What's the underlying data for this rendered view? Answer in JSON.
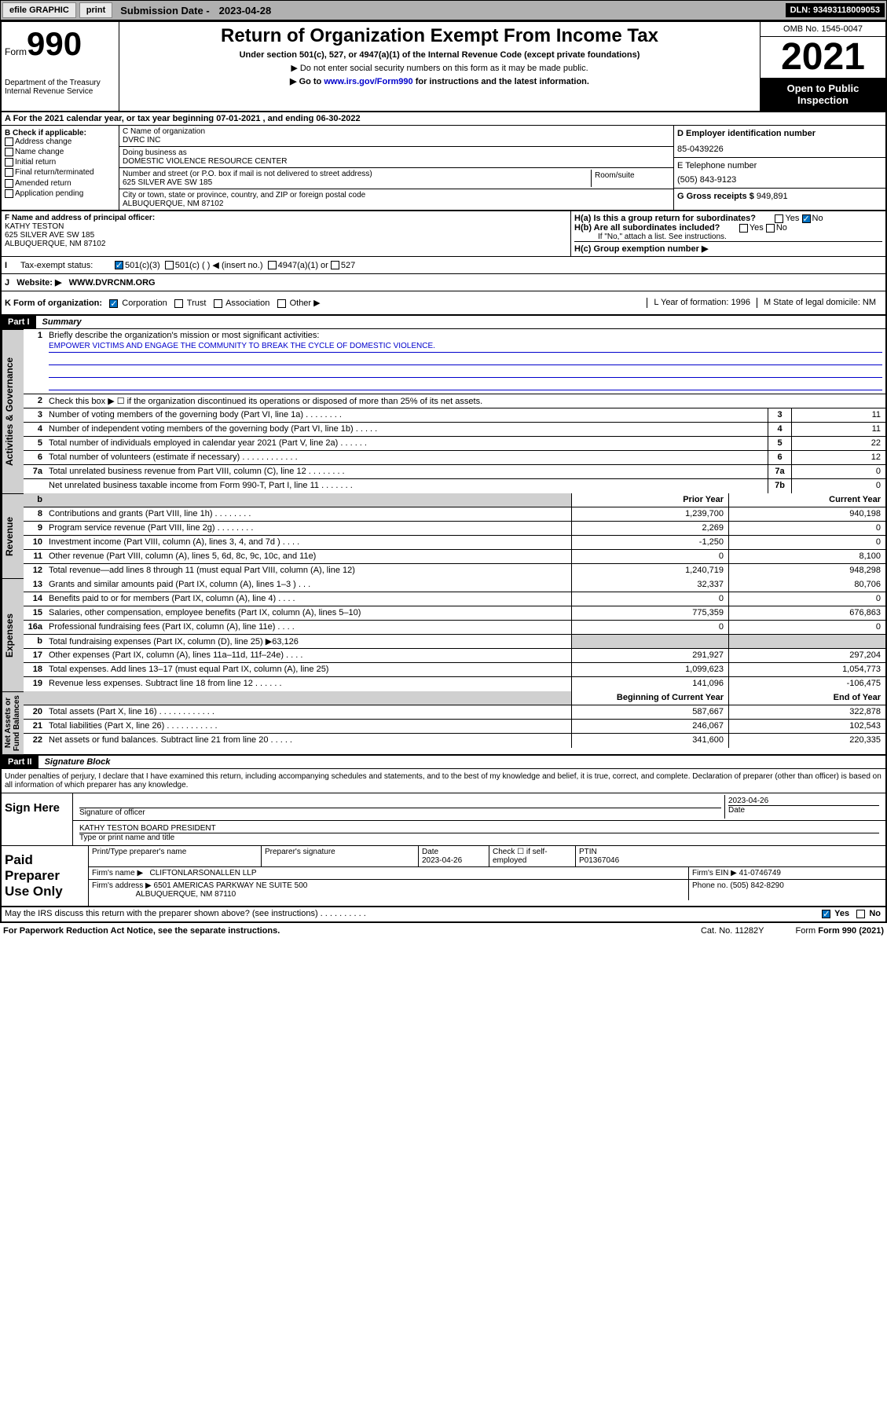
{
  "topbar": {
    "efile": "efile GRAPHIC",
    "print": "print",
    "subdate_lbl": "Submission Date - ",
    "subdate": "2023-04-28",
    "dln": "DLN: 93493118009053"
  },
  "hdr": {
    "form": "Form",
    "formno": "990",
    "title": "Return of Organization Exempt From Income Tax",
    "sub1": "Under section 501(c), 527, or 4947(a)(1) of the Internal Revenue Code (except private foundations)",
    "sub2": "▶ Do not enter social security numbers on this form as it may be made public.",
    "sub3_pre": "▶ Go to ",
    "sub3_link": "www.irs.gov/Form990",
    "sub3_post": " for instructions and the latest information.",
    "dept": "Department of the Treasury\nInternal Revenue Service",
    "omb": "OMB No. 1545-0047",
    "year": "2021",
    "open": "Open to Public Inspection"
  },
  "rowA": "A For the 2021 calendar year, or tax year beginning 07-01-2021   , and ending 06-30-2022",
  "B": {
    "lbl": "B Check if applicable:",
    "opts": [
      "Address change",
      "Name change",
      "Initial return",
      "Final return/terminated",
      "Amended return",
      "Application pending"
    ]
  },
  "C": {
    "name_lbl": "C Name of organization",
    "name": "DVRC INC",
    "dba_lbl": "Doing business as",
    "dba": "DOMESTIC VIOLENCE RESOURCE CENTER",
    "street_lbl": "Number and street (or P.O. box if mail is not delivered to street address)",
    "street": "625 SILVER AVE SW 185",
    "room_lbl": "Room/suite",
    "city_lbl": "City or town, state or province, country, and ZIP or foreign postal code",
    "city": "ALBUQUERQUE, NM  87102"
  },
  "D": {
    "lbl": "D Employer identification number",
    "val": "85-0439226"
  },
  "E": {
    "lbl": "E Telephone number",
    "val": "(505) 843-9123"
  },
  "G": {
    "lbl": "G Gross receipts $",
    "val": "949,891"
  },
  "F": {
    "lbl": "F Name and address of principal officer:",
    "name": "KATHY TESTON",
    "addr1": "625 SILVER AVE SW 185",
    "addr2": "ALBUQUERQUE, NM  87102"
  },
  "H": {
    "ha": "H(a)  Is this a group return for subordinates?",
    "hb": "H(b)  Are all subordinates included?",
    "hb_note": "If \"No,\" attach a list. See instructions.",
    "hc": "H(c)  Group exemption number ▶",
    "yes": "Yes",
    "no": "No"
  },
  "I": {
    "lbl": "Tax-exempt status:",
    "o1": "501(c)(3)",
    "o2": "501(c) (    ) ◀ (insert no.)",
    "o3": "4947(a)(1) or",
    "o4": "527"
  },
  "J": {
    "lbl": "Website: ▶",
    "val": "WWW.DVRCNM.ORG"
  },
  "K": {
    "lbl": "K Form of organization:",
    "o1": "Corporation",
    "o2": "Trust",
    "o3": "Association",
    "o4": "Other ▶",
    "L": "L Year of formation: 1996",
    "M": "M State of legal domicile: NM"
  },
  "part1": {
    "hdr": "Part I",
    "title": "Summary"
  },
  "p1": {
    "l1": "Briefly describe the organization's mission or most significant activities:",
    "mission": "EMPOWER VICTIMS AND ENGAGE THE COMMUNITY TO BREAK THE CYCLE OF DOMESTIC VIOLENCE.",
    "l2": "Check this box ▶ ☐  if the organization discontinued its operations or disposed of more than 25% of its net assets.",
    "lines_gov": [
      {
        "n": "3",
        "t": "Number of voting members of the governing body (Part VI, line 1a)  .    .    .    .    .    .    .    .",
        "b": "3",
        "v": "11"
      },
      {
        "n": "4",
        "t": "Number of independent voting members of the governing body (Part VI, line 1b)   .    .    .    .    .",
        "b": "4",
        "v": "11"
      },
      {
        "n": "5",
        "t": "Total number of individuals employed in calendar year 2021 (Part V, line 2a)  .    .    .    .    .    .",
        "b": "5",
        "v": "22"
      },
      {
        "n": "6",
        "t": "Total number of volunteers (estimate if necessary)   .    .    .    .    .    .    .    .    .    .    .    .",
        "b": "6",
        "v": "12"
      },
      {
        "n": "7a",
        "t": "Total unrelated business revenue from Part VIII, column (C), line 12  .    .    .    .    .    .    .    .",
        "b": "7a",
        "v": "0"
      },
      {
        "n": "",
        "t": "Net unrelated business taxable income from Form 990-T, Part I, line 11  .    .    .    .    .    .    .",
        "b": "7b",
        "v": "0"
      }
    ],
    "prior_hdr": "Prior Year",
    "curr_hdr": "Current Year",
    "lines_rev": [
      {
        "n": "8",
        "t": "Contributions and grants (Part VIII, line 1h)   .    .    .    .    .    .    .    .",
        "p": "1,239,700",
        "c": "940,198"
      },
      {
        "n": "9",
        "t": "Program service revenue (Part VIII, line 2g)   .    .    .    .    .    .    .    .",
        "p": "2,269",
        "c": "0"
      },
      {
        "n": "10",
        "t": "Investment income (Part VIII, column (A), lines 3, 4, and 7d )   .    .    .    .",
        "p": "-1,250",
        "c": "0"
      },
      {
        "n": "11",
        "t": "Other revenue (Part VIII, column (A), lines 5, 6d, 8c, 9c, 10c, and 11e)",
        "p": "0",
        "c": "8,100"
      },
      {
        "n": "12",
        "t": "Total revenue—add lines 8 through 11 (must equal Part VIII, column (A), line 12)",
        "p": "1,240,719",
        "c": "948,298"
      }
    ],
    "lines_exp": [
      {
        "n": "13",
        "t": "Grants and similar amounts paid (Part IX, column (A), lines 1–3 )   .    .    .",
        "p": "32,337",
        "c": "80,706"
      },
      {
        "n": "14",
        "t": "Benefits paid to or for members (Part IX, column (A), line 4)  .    .    .    .",
        "p": "0",
        "c": "0"
      },
      {
        "n": "15",
        "t": "Salaries, other compensation, employee benefits (Part IX, column (A), lines 5–10)",
        "p": "775,359",
        "c": "676,863"
      },
      {
        "n": "16a",
        "t": "Professional fundraising fees (Part IX, column (A), line 11e)   .    .    .    .",
        "p": "0",
        "c": "0"
      },
      {
        "n": "b",
        "t": "Total fundraising expenses (Part IX, column (D), line 25) ▶63,126",
        "p": "",
        "c": "",
        "shade": true
      },
      {
        "n": "17",
        "t": "Other expenses (Part IX, column (A), lines 11a–11d, 11f–24e)   .    .    .    .",
        "p": "291,927",
        "c": "297,204"
      },
      {
        "n": "18",
        "t": "Total expenses. Add lines 13–17 (must equal Part IX, column (A), line 25)",
        "p": "1,099,623",
        "c": "1,054,773"
      },
      {
        "n": "19",
        "t": "Revenue less expenses. Subtract line 18 from line 12  .    .    .    .    .    .",
        "p": "141,096",
        "c": "-106,475"
      }
    ],
    "beg_hdr": "Beginning of Current Year",
    "end_hdr": "End of Year",
    "lines_na": [
      {
        "n": "20",
        "t": "Total assets (Part X, line 16)  .    .    .    .    .    .    .    .    .    .    .    .",
        "p": "587,667",
        "c": "322,878"
      },
      {
        "n": "21",
        "t": "Total liabilities (Part X, line 26)  .    .    .    .    .    .    .    .    .    .    .",
        "p": "246,067",
        "c": "102,543"
      },
      {
        "n": "22",
        "t": "Net assets or fund balances. Subtract line 21 from line 20  .    .    .    .    .",
        "p": "341,600",
        "c": "220,335"
      }
    ]
  },
  "vtabs": {
    "gov": "Activities & Governance",
    "rev": "Revenue",
    "exp": "Expenses",
    "na": "Net Assets or\nFund Balances"
  },
  "part2": {
    "hdr": "Part II",
    "title": "Signature Block"
  },
  "sig": {
    "decl": "Under penalties of perjury, I declare that I have examined this return, including accompanying schedules and statements, and to the best of my knowledge and belief, it is true, correct, and complete. Declaration of preparer (other than officer) is based on all information of which preparer has any knowledge.",
    "sign_here": "Sign Here",
    "sig_officer": "Signature of officer",
    "date": "Date",
    "date_val": "2023-04-26",
    "name_title": "KATHY TESTON  BOARD PRESIDENT",
    "type_name": "Type or print name and title"
  },
  "prep": {
    "lbl": "Paid Preparer Use Only",
    "r1": {
      "c1": "Print/Type preparer's name",
      "c2": "Preparer's signature",
      "c3_lbl": "Date",
      "c3": "2023-04-26",
      "c4": "Check ☐ if self-employed",
      "c5_lbl": "PTIN",
      "c5": "P01367046"
    },
    "r2": {
      "c1": "Firm's name    ▶",
      "c1v": "CLIFTONLARSONALLEN LLP",
      "c2": "Firm's EIN ▶",
      "c2v": "41-0746749"
    },
    "r3": {
      "c1": "Firm's address ▶",
      "c1v": "6501 AMERICAS PARKWAY NE SUITE 500",
      "c1v2": "ALBUQUERQUE, NM  87110",
      "c2": "Phone no.",
      "c2v": "(505) 842-8290"
    }
  },
  "discuss": {
    "t": "May the IRS discuss this return with the preparer shown above? (see instructions)   .    .    .    .    .    .    .    .    .    .",
    "yes": "Yes",
    "no": "No"
  },
  "footer": {
    "l": "For Paperwork Reduction Act Notice, see the separate instructions.",
    "m": "Cat. No. 11282Y",
    "r": "Form 990 (2021)"
  }
}
